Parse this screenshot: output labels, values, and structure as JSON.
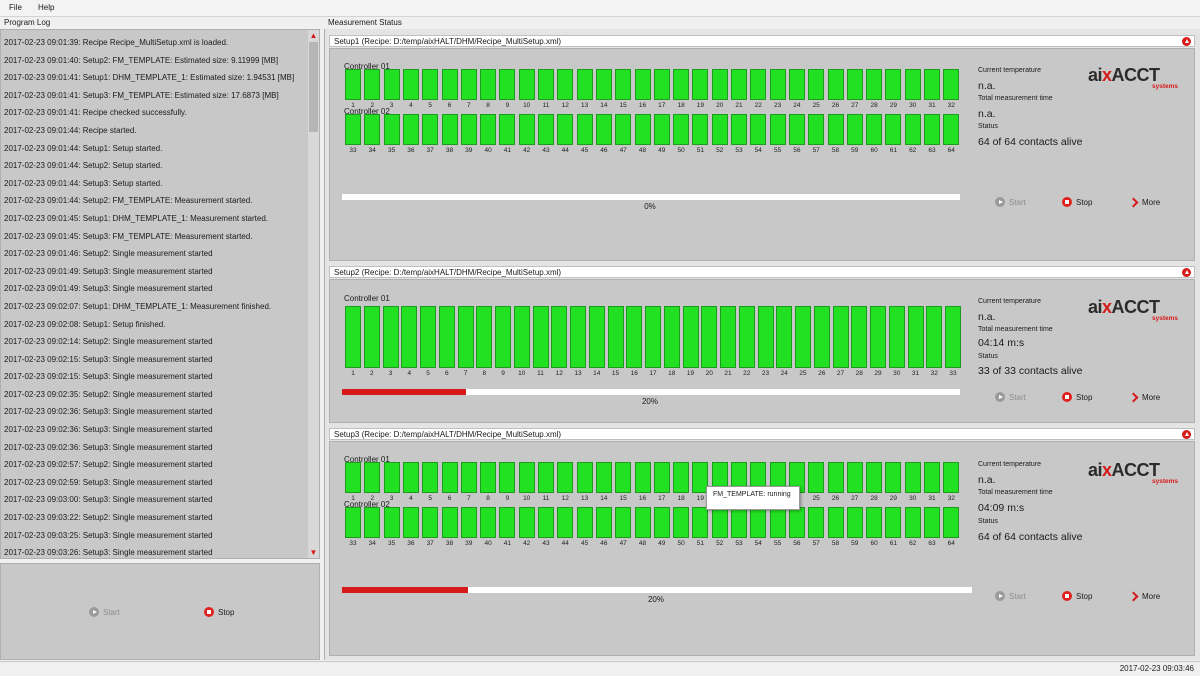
{
  "menu": [
    "File",
    "Help"
  ],
  "panels": {
    "program_log": "Program Log",
    "measurement_status": "Measurement Status"
  },
  "log": {
    "entries": [
      "2017-02-23 09:01:39: Recipe Recipe_MultiSetup.xml is loaded.",
      "2017-02-23 09:01:40: Setup2: FM_TEMPLATE: Estimated size: 9.11999 [MB]",
      "2017-02-23 09:01:41: Setup1: DHM_TEMPLATE_1: Estimated size: 1.94531 [MB]",
      "2017-02-23 09:01:41: Setup3: FM_TEMPLATE: Estimated size: 17.6873 [MB]",
      "2017-02-23 09:01:41: Recipe checked successfully.",
      "2017-02-23 09:01:44: Recipe started.",
      "2017-02-23 09:01:44: Setup1: Setup started.",
      "2017-02-23 09:01:44: Setup2: Setup started.",
      "2017-02-23 09:01:44: Setup3: Setup started.",
      "2017-02-23 09:01:44: Setup2: FM_TEMPLATE: Measurement started.",
      "2017-02-23 09:01:45: Setup1: DHM_TEMPLATE_1: Measurement started.",
      "2017-02-23 09:01:45: Setup3: FM_TEMPLATE: Measurement started.",
      "2017-02-23 09:01:46: Setup2: Single measurement started",
      "2017-02-23 09:01:49: Setup3: Single measurement started",
      "2017-02-23 09:01:49: Setup3: Single measurement started",
      "2017-02-23 09:02:07: Setup1: DHM_TEMPLATE_1: Measurement finished.",
      "2017-02-23 09:02:08: Setup1: Setup finished.",
      "2017-02-23 09:02:14: Setup2: Single measurement started",
      "2017-02-23 09:02:15: Setup3: Single measurement started",
      "2017-02-23 09:02:15: Setup3: Single measurement started",
      "2017-02-23 09:02:35: Setup2: Single measurement started",
      "2017-02-23 09:02:36: Setup3: Single measurement started",
      "2017-02-23 09:02:36: Setup3: Single measurement started",
      "2017-02-23 09:02:36: Setup3: Single measurement started",
      "2017-02-23 09:02:57: Setup2: Single measurement started",
      "2017-02-23 09:02:59: Setup3: Single measurement started",
      "2017-02-23 09:03:00: Setup3: Single measurement started",
      "2017-02-23 09:03:22: Setup2: Single measurement started",
      "2017-02-23 09:03:25: Setup3: Single measurement started",
      "2017-02-23 09:03:26: Setup3: Single measurement started"
    ],
    "start_label": "Start",
    "stop_label": "Stop"
  },
  "labels": {
    "current_temperature": "Current temperature",
    "total_measurement_time": "Total measurement time",
    "status": "Status",
    "start": "Start",
    "stop": "Stop",
    "more": "More"
  },
  "logo": {
    "text_a": "ai",
    "text_x": "x",
    "text_b": "ACCT",
    "sub": "systems"
  },
  "setups": [
    {
      "header": "Setup1    (Recipe: D:/temp/aixHALT/DHM/Recipe_MultiSetup.xml)",
      "controllers": [
        {
          "label": "Controller 01",
          "contacts": [
            "1",
            "2",
            "3",
            "4",
            "5",
            "6",
            "7",
            "8",
            "9",
            "10",
            "11",
            "12",
            "13",
            "14",
            "15",
            "16",
            "17",
            "18",
            "19",
            "20",
            "21",
            "22",
            "23",
            "24",
            "25",
            "26",
            "27",
            "28",
            "29",
            "30",
            "31",
            "32"
          ]
        },
        {
          "label": "Controller 02",
          "contacts": [
            "33",
            "34",
            "35",
            "36",
            "37",
            "38",
            "39",
            "40",
            "41",
            "42",
            "43",
            "44",
            "45",
            "46",
            "47",
            "48",
            "49",
            "50",
            "51",
            "52",
            "53",
            "54",
            "55",
            "56",
            "57",
            "58",
            "59",
            "60",
            "61",
            "62",
            "63",
            "64"
          ]
        }
      ],
      "progress": 0,
      "progress_text": "0%",
      "temperature": "n.a.",
      "measurement_time": "n.a.",
      "status": "64 of 64 contacts alive",
      "start_enabled": false
    },
    {
      "header": "Setup2    (Recipe: D:/temp/aixHALT/DHM/Recipe_MultiSetup.xml)",
      "controllers": [
        {
          "label": "Controller 01",
          "contacts": [
            "1",
            "2",
            "3",
            "4",
            "5",
            "6",
            "7",
            "8",
            "9",
            "10",
            "11",
            "12",
            "13",
            "14",
            "15",
            "16",
            "17",
            "18",
            "19",
            "20",
            "21",
            "22",
            "23",
            "24",
            "25",
            "26",
            "27",
            "28",
            "29",
            "30",
            "31",
            "32",
            "33"
          ]
        }
      ],
      "progress": 0.2,
      "progress_text": "20%",
      "temperature": "n.a.",
      "measurement_time": "04:14 m:s",
      "status": "33 of 33 contacts alive",
      "start_enabled": false
    },
    {
      "header": "Setup3    (Recipe: D:/temp/aixHALT/DHM/Recipe_MultiSetup.xml)",
      "controllers": [
        {
          "label": "Controller 01",
          "contacts": [
            "1",
            "2",
            "3",
            "4",
            "5",
            "6",
            "7",
            "8",
            "9",
            "10",
            "11",
            "12",
            "13",
            "14",
            "15",
            "16",
            "17",
            "18",
            "19",
            "20",
            "21",
            "22",
            "23",
            "24",
            "25",
            "26",
            "27",
            "28",
            "29",
            "30",
            "31",
            "32"
          ]
        },
        {
          "label": "Controller 02",
          "contacts": [
            "33",
            "34",
            "35",
            "36",
            "37",
            "38",
            "39",
            "40",
            "41",
            "42",
            "43",
            "44",
            "45",
            "46",
            "47",
            "48",
            "49",
            "50",
            "51",
            "52",
            "53",
            "54",
            "55",
            "56",
            "57",
            "58",
            "59",
            "60",
            "61",
            "62",
            "63",
            "64"
          ]
        }
      ],
      "progress": 0.2,
      "progress_text": "20%",
      "temperature": "n.a.",
      "measurement_time": "04:09 m:s",
      "status": "64 of 64 contacts alive",
      "start_enabled": false
    }
  ],
  "tooltip": "FM_TEMPLATE: running",
  "statusbar": {
    "datetime": "2017-02-23 09:03:46"
  },
  "colors": {
    "contact_ok": "#22e022",
    "accent": "#d61a1a",
    "panel_bg": "#c8c8c8"
  }
}
